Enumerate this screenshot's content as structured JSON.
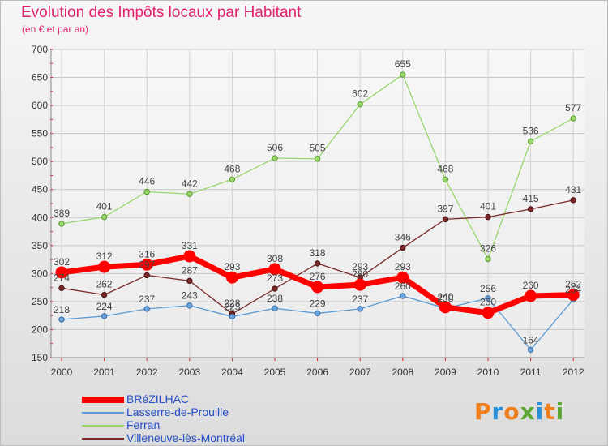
{
  "header": {
    "title": "Evolution des Impôts locaux par Habitant",
    "subtitle": "(en € et par an)"
  },
  "logo": {
    "text": "Proxiti",
    "colors": [
      "#f07f1e",
      "#2a8fd8",
      "#f07f1e",
      "#5aa832",
      "#2a8fd8",
      "#f07f1e",
      "#5aa832"
    ]
  },
  "chart_data": {
    "type": "line",
    "title": "Evolution des Impôts locaux par Habitant",
    "subtitle": "(en € et par an)",
    "x": [
      "2000",
      "2001",
      "2002",
      "2003",
      "2004",
      "2005",
      "2006",
      "2007",
      "2008",
      "2009",
      "2010",
      "2011",
      "2012"
    ],
    "ylim": [
      150,
      700
    ],
    "yticks": [
      150,
      200,
      250,
      300,
      350,
      400,
      450,
      500,
      550,
      600,
      650,
      700
    ],
    "grid": true,
    "legend_position": "bottom-left",
    "series": [
      {
        "name": "BRéZILHAC",
        "color": "#ff0000",
        "values": [
          302,
          312,
          316,
          331,
          293,
          308,
          276,
          280,
          293,
          240,
          230,
          260,
          262
        ],
        "labels": [
          "302",
          "312",
          "316",
          "331",
          "293",
          "308",
          "276",
          "280",
          "293",
          "240",
          "230",
          "260",
          "262"
        ]
      },
      {
        "name": "Lasserre-de-Prouille",
        "color": "#5b9bd5",
        "values": [
          218,
          224,
          237,
          243,
          223,
          238,
          229,
          237,
          260,
          238,
          256,
          164,
          254
        ],
        "labels": [
          "218",
          "224",
          "237",
          "243",
          "223",
          "238",
          "229",
          "237",
          "260",
          "238",
          "256",
          "164",
          "254"
        ]
      },
      {
        "name": "Ferran",
        "color": "#99d66b",
        "values": [
          389,
          401,
          446,
          442,
          468,
          506,
          505,
          602,
          655,
          468,
          326,
          536,
          577
        ],
        "labels": [
          "389",
          "401",
          "446",
          "442",
          "468",
          "506",
          "505",
          "602",
          "655",
          "468",
          "326",
          "536",
          "577"
        ]
      },
      {
        "name": "Villeneuve-lès-Montréal",
        "color": "#7a2a2a",
        "values": [
          274,
          262,
          297,
          287,
          228,
          273,
          318,
          293,
          346,
          397,
          401,
          415,
          431
        ],
        "labels": [
          "274",
          "262",
          "297",
          "287",
          "228",
          "273",
          "318",
          "293",
          "346",
          "397",
          "401",
          "415",
          "431"
        ]
      }
    ]
  }
}
